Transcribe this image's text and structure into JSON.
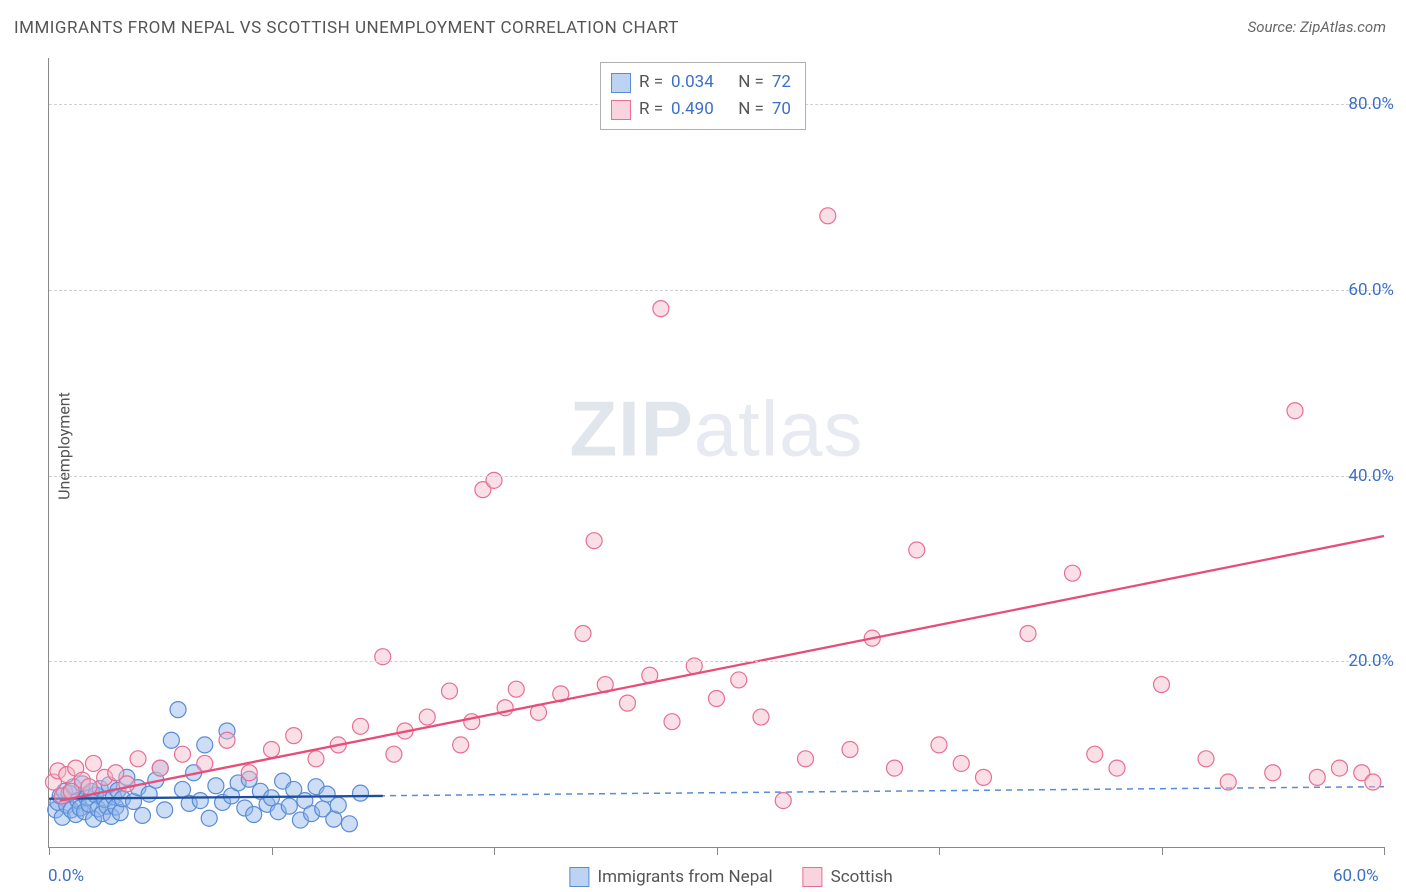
{
  "title": "IMMIGRANTS FROM NEPAL VS SCOTTISH UNEMPLOYMENT CORRELATION CHART",
  "source": "Source: ZipAtlas.com",
  "watermark_zip": "ZIP",
  "watermark_atlas": "atlas",
  "chart": {
    "type": "scatter",
    "ylabel": "Unemployment",
    "xlim": [
      0,
      60
    ],
    "ylim": [
      0,
      85
    ],
    "x_ticks": [
      0,
      10,
      20,
      30,
      40,
      50,
      60
    ],
    "x_tick_labels": {
      "0": "0.0%",
      "60": "60.0%"
    },
    "y_ticks": [
      20,
      40,
      60,
      80
    ],
    "y_tick_labels": {
      "20": "20.0%",
      "40": "40.0%",
      "60": "60.0%",
      "80": "80.0%"
    },
    "grid_color": "#d0d0d0",
    "axis_color": "#888888",
    "background": "#ffffff",
    "marker_radius": 8,
    "marker_opacity": 0.45,
    "series": [
      {
        "name": "Immigrants from Nepal",
        "color_fill": "#8fb4e8",
        "color_stroke": "#5a8cd6",
        "swatch_fill": "#bcd3f2",
        "swatch_border": "#5a8cd6",
        "R": "0.034",
        "N": "72",
        "trend": {
          "x1": 0,
          "y1": 5.2,
          "x2": 60,
          "y2": 6.5,
          "dash": "6 5",
          "color": "#5a8cd6",
          "width": 1.5
        },
        "trend_solid": {
          "x1": 0,
          "y1": 5.2,
          "x2": 15,
          "y2": 5.5,
          "color": "#1f4e9c",
          "width": 2.3
        },
        "points": [
          [
            0.3,
            4.0
          ],
          [
            0.4,
            4.8
          ],
          [
            0.5,
            5.5
          ],
          [
            0.6,
            3.2
          ],
          [
            0.7,
            6.0
          ],
          [
            0.8,
            4.5
          ],
          [
            0.9,
            5.8
          ],
          [
            1.0,
            4.0
          ],
          [
            1.1,
            6.5
          ],
          [
            1.2,
            3.5
          ],
          [
            1.3,
            5.0
          ],
          [
            1.4,
            4.2
          ],
          [
            1.5,
            6.8
          ],
          [
            1.6,
            3.8
          ],
          [
            1.7,
            5.3
          ],
          [
            1.8,
            4.6
          ],
          [
            1.9,
            6.0
          ],
          [
            2.0,
            3.0
          ],
          [
            2.1,
            5.6
          ],
          [
            2.2,
            4.1
          ],
          [
            2.3,
            6.3
          ],
          [
            2.4,
            3.6
          ],
          [
            2.5,
            5.1
          ],
          [
            2.6,
            4.4
          ],
          [
            2.7,
            6.7
          ],
          [
            2.8,
            3.3
          ],
          [
            2.9,
            5.4
          ],
          [
            3.0,
            4.3
          ],
          [
            3.1,
            6.1
          ],
          [
            3.2,
            3.7
          ],
          [
            3.3,
            5.2
          ],
          [
            3.5,
            7.5
          ],
          [
            3.8,
            4.9
          ],
          [
            4.0,
            6.4
          ],
          [
            4.2,
            3.4
          ],
          [
            4.5,
            5.7
          ],
          [
            4.8,
            7.2
          ],
          [
            5.0,
            8.5
          ],
          [
            5.2,
            4.0
          ],
          [
            5.5,
            11.5
          ],
          [
            5.8,
            14.8
          ],
          [
            6.0,
            6.2
          ],
          [
            6.3,
            4.7
          ],
          [
            6.5,
            8.0
          ],
          [
            6.8,
            5.0
          ],
          [
            7.0,
            11.0
          ],
          [
            7.2,
            3.1
          ],
          [
            7.5,
            6.6
          ],
          [
            7.8,
            4.8
          ],
          [
            8.0,
            12.5
          ],
          [
            8.2,
            5.5
          ],
          [
            8.5,
            6.9
          ],
          [
            8.8,
            4.2
          ],
          [
            9.0,
            7.3
          ],
          [
            9.2,
            3.5
          ],
          [
            9.5,
            6.0
          ],
          [
            9.8,
            4.6
          ],
          [
            10.0,
            5.3
          ],
          [
            10.3,
            3.8
          ],
          [
            10.5,
            7.1
          ],
          [
            10.8,
            4.4
          ],
          [
            11.0,
            6.2
          ],
          [
            11.3,
            2.9
          ],
          [
            11.5,
            5.0
          ],
          [
            11.8,
            3.6
          ],
          [
            12.0,
            6.5
          ],
          [
            12.3,
            4.1
          ],
          [
            12.5,
            5.7
          ],
          [
            12.8,
            3.0
          ],
          [
            13.0,
            4.5
          ],
          [
            13.5,
            2.5
          ],
          [
            14.0,
            5.8
          ]
        ]
      },
      {
        "name": "Scottish",
        "color_fill": "#f4b8c8",
        "color_stroke": "#e86f94",
        "swatch_fill": "#f9d4de",
        "swatch_border": "#e86f94",
        "R": "0.490",
        "N": "70",
        "trend": {
          "x1": 0.5,
          "y1": 5.0,
          "x2": 60,
          "y2": 33.5,
          "dash": "",
          "color": "#e84d7a",
          "width": 2.3
        },
        "points": [
          [
            0.2,
            7.0
          ],
          [
            0.4,
            8.2
          ],
          [
            0.6,
            5.5
          ],
          [
            0.8,
            7.8
          ],
          [
            1.0,
            6.0
          ],
          [
            1.2,
            8.5
          ],
          [
            1.5,
            7.2
          ],
          [
            1.8,
            6.5
          ],
          [
            2.0,
            9.0
          ],
          [
            2.5,
            7.5
          ],
          [
            3.0,
            8.0
          ],
          [
            3.5,
            6.8
          ],
          [
            4.0,
            9.5
          ],
          [
            5.0,
            8.5
          ],
          [
            6.0,
            10.0
          ],
          [
            7.0,
            9.0
          ],
          [
            8.0,
            11.5
          ],
          [
            9.0,
            8.0
          ],
          [
            10.0,
            10.5
          ],
          [
            11.0,
            12.0
          ],
          [
            12.0,
            9.5
          ],
          [
            13.0,
            11.0
          ],
          [
            14.0,
            13.0
          ],
          [
            15.0,
            20.5
          ],
          [
            15.5,
            10.0
          ],
          [
            16.0,
            12.5
          ],
          [
            17.0,
            14.0
          ],
          [
            18.0,
            16.8
          ],
          [
            18.5,
            11.0
          ],
          [
            19.0,
            13.5
          ],
          [
            19.5,
            38.5
          ],
          [
            20.0,
            39.5
          ],
          [
            20.5,
            15.0
          ],
          [
            21.0,
            17.0
          ],
          [
            22.0,
            14.5
          ],
          [
            23.0,
            16.5
          ],
          [
            24.0,
            23.0
          ],
          [
            24.5,
            33.0
          ],
          [
            25.0,
            17.5
          ],
          [
            26.0,
            15.5
          ],
          [
            27.0,
            18.5
          ],
          [
            27.5,
            58.0
          ],
          [
            28.0,
            13.5
          ],
          [
            29.0,
            19.5
          ],
          [
            30.0,
            16.0
          ],
          [
            31.0,
            18.0
          ],
          [
            32.0,
            14.0
          ],
          [
            33.0,
            5.0
          ],
          [
            34.0,
            9.5
          ],
          [
            35.0,
            68.0
          ],
          [
            36.0,
            10.5
          ],
          [
            37.0,
            22.5
          ],
          [
            38.0,
            8.5
          ],
          [
            39.0,
            32.0
          ],
          [
            40.0,
            11.0
          ],
          [
            41.0,
            9.0
          ],
          [
            42.0,
            7.5
          ],
          [
            44.0,
            23.0
          ],
          [
            46.0,
            29.5
          ],
          [
            47.0,
            10.0
          ],
          [
            48.0,
            8.5
          ],
          [
            50.0,
            17.5
          ],
          [
            52.0,
            9.5
          ],
          [
            53.0,
            7.0
          ],
          [
            55.0,
            8.0
          ],
          [
            56.0,
            47.0
          ],
          [
            57.0,
            7.5
          ],
          [
            58.0,
            8.5
          ],
          [
            59.0,
            8.0
          ],
          [
            59.5,
            7.0
          ]
        ]
      }
    ]
  },
  "legend_labels": {
    "R": "R =",
    "N": "N ="
  },
  "colors": {
    "tick_label": "#3b6fc9",
    "text": "#555555"
  }
}
